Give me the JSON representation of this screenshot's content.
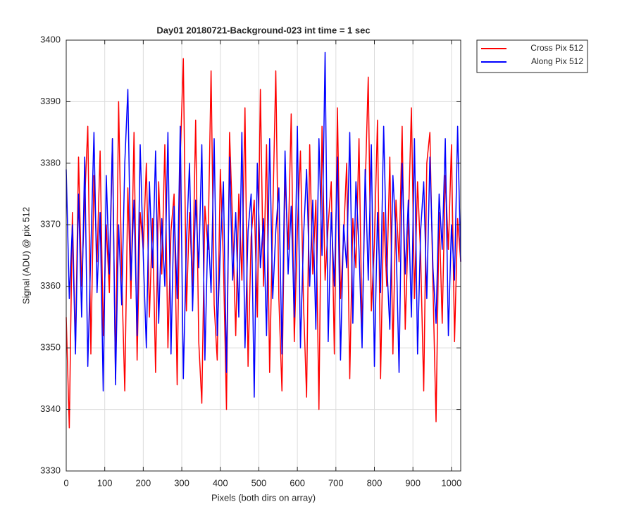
{
  "chart_data": {
    "type": "line",
    "title": "Day01 20180721-Background-023 int time = 1 sec",
    "xlabel": "Pixels (both dirs on array)",
    "ylabel": "Signal (ADU) @ pix 512",
    "x": [
      0,
      8,
      16,
      24,
      32,
      40,
      48,
      56,
      64,
      72,
      80,
      88,
      96,
      104,
      112,
      120,
      128,
      136,
      144,
      152,
      160,
      168,
      176,
      184,
      192,
      200,
      208,
      216,
      224,
      232,
      240,
      248,
      256,
      264,
      272,
      280,
      288,
      296,
      304,
      312,
      320,
      328,
      336,
      344,
      352,
      360,
      368,
      376,
      384,
      392,
      400,
      408,
      416,
      424,
      432,
      440,
      448,
      456,
      464,
      472,
      480,
      488,
      496,
      504,
      512,
      520,
      528,
      536,
      544,
      552,
      560,
      568,
      576,
      584,
      592,
      600,
      608,
      616,
      624,
      632,
      640,
      648,
      656,
      664,
      672,
      680,
      688,
      696,
      704,
      712,
      720,
      728,
      736,
      744,
      752,
      760,
      768,
      776,
      784,
      792,
      800,
      808,
      816,
      824,
      832,
      840,
      848,
      856,
      864,
      872,
      880,
      888,
      896,
      904,
      912,
      920,
      928,
      936,
      944,
      952,
      960,
      968,
      976,
      984,
      992,
      1000,
      1008,
      1016,
      1024
    ],
    "series": [
      {
        "name": "Cross Pix 512",
        "color": "#ff0000",
        "values": [
          3355,
          3337,
          3372,
          3350,
          3381,
          3360,
          3374,
          3386,
          3349,
          3378,
          3364,
          3382,
          3352,
          3370,
          3359,
          3384,
          3345,
          3390,
          3362,
          3343,
          3376,
          3358,
          3385,
          3348,
          3372,
          3366,
          3380,
          3355,
          3371,
          3346,
          3377,
          3362,
          3383,
          3350,
          3369,
          3375,
          3344,
          3381,
          3397,
          3356,
          3372,
          3360,
          3387,
          3351,
          3341,
          3373,
          3366,
          3395,
          3357,
          3348,
          3379,
          3364,
          3340,
          3385,
          3370,
          3352,
          3375,
          3361,
          3389,
          3347,
          3368,
          3374,
          3355,
          3392,
          3360,
          3383,
          3346,
          3371,
          3395,
          3358,
          3343,
          3378,
          3366,
          3388,
          3351,
          3369,
          3382,
          3357,
          3342,
          3383,
          3362,
          3374,
          3340,
          3386,
          3361,
          3370,
          3377,
          3349,
          3389,
          3358,
          3368,
          3380,
          3345,
          3371,
          3363,
          3384,
          3352,
          3376,
          3394,
          3356,
          3367,
          3387,
          3345,
          3372,
          3360,
          3381,
          3349,
          3374,
          3364,
          3386,
          3353,
          3370,
          3389,
          3358,
          3377,
          3365,
          3343,
          3380,
          3385,
          3360,
          3338,
          3372,
          3354,
          3378,
          3366,
          3383,
          3351,
          3371,
          3364
        ]
      },
      {
        "name": "Along Pix 512",
        "color": "#0000ff",
        "values": [
          3379,
          3358,
          3370,
          3349,
          3375,
          3355,
          3381,
          3347,
          3366,
          3385,
          3359,
          3372,
          3343,
          3378,
          3362,
          3384,
          3344,
          3370,
          3357,
          3380,
          3392,
          3361,
          3374,
          3352,
          3383,
          3365,
          3350,
          3377,
          3363,
          3382,
          3354,
          3371,
          3360,
          3385,
          3349,
          3373,
          3358,
          3386,
          3345,
          3367,
          3380,
          3356,
          3374,
          3363,
          3383,
          3348,
          3370,
          3359,
          3384,
          3352,
          3366,
          3377,
          3346,
          3381,
          3361,
          3372,
          3355,
          3385,
          3350,
          3369,
          3375,
          3342,
          3380,
          3363,
          3371,
          3352,
          3384,
          3358,
          3369,
          3376,
          3349,
          3382,
          3362,
          3373,
          3355,
          3386,
          3350,
          3368,
          3379,
          3360,
          3374,
          3353,
          3384,
          3365,
          3398,
          3351,
          3372,
          3360,
          3381,
          3348,
          3370,
          3363,
          3385,
          3354,
          3377,
          3366,
          3350,
          3379,
          3361,
          3383,
          3347,
          3372,
          3359,
          3386,
          3364,
          3353,
          3378,
          3368,
          3346,
          3380,
          3362,
          3374,
          3355,
          3384,
          3349,
          3369,
          3377,
          3358,
          3381,
          3363,
          3354,
          3375,
          3366,
          3384,
          3352,
          3370,
          3361,
          3386,
          3364
        ]
      }
    ],
    "xlim": [
      0,
      1024
    ],
    "xticks": [
      0,
      100,
      200,
      300,
      400,
      500,
      600,
      700,
      800,
      900,
      1000
    ],
    "ylim": [
      3330,
      3400
    ],
    "yticks": [
      3330,
      3340,
      3350,
      3360,
      3370,
      3380,
      3390,
      3400
    ],
    "grid": true,
    "legend": "northeastoutside"
  }
}
